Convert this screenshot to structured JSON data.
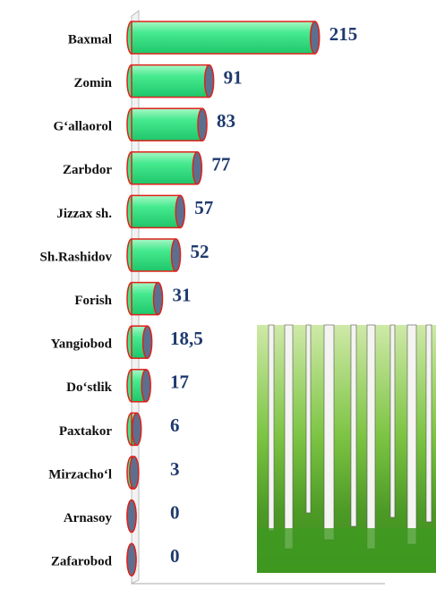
{
  "chart_data": {
    "type": "bar",
    "orientation": "horizontal",
    "categories": [
      "Baxmal",
      "Zomin",
      "G‘allaorol",
      "Zarbdor",
      "Jizzax sh.",
      "Sh.Rashidov",
      "Forish",
      "Yangiobod",
      "Do‘stlik",
      "Paxtakor",
      "Mirzacho‘l",
      "Arnasoy",
      "Zafarobod"
    ],
    "values": [
      215,
      91,
      83,
      77,
      57,
      52,
      31,
      18.5,
      17,
      6,
      3,
      0,
      0
    ],
    "value_labels": [
      "215",
      "91",
      "83",
      "77",
      "57",
      "52",
      "31",
      "18,5",
      "17",
      "6",
      "3",
      "0",
      "0"
    ],
    "color": "#3fe68c",
    "xlim": [
      0,
      230
    ]
  }
}
